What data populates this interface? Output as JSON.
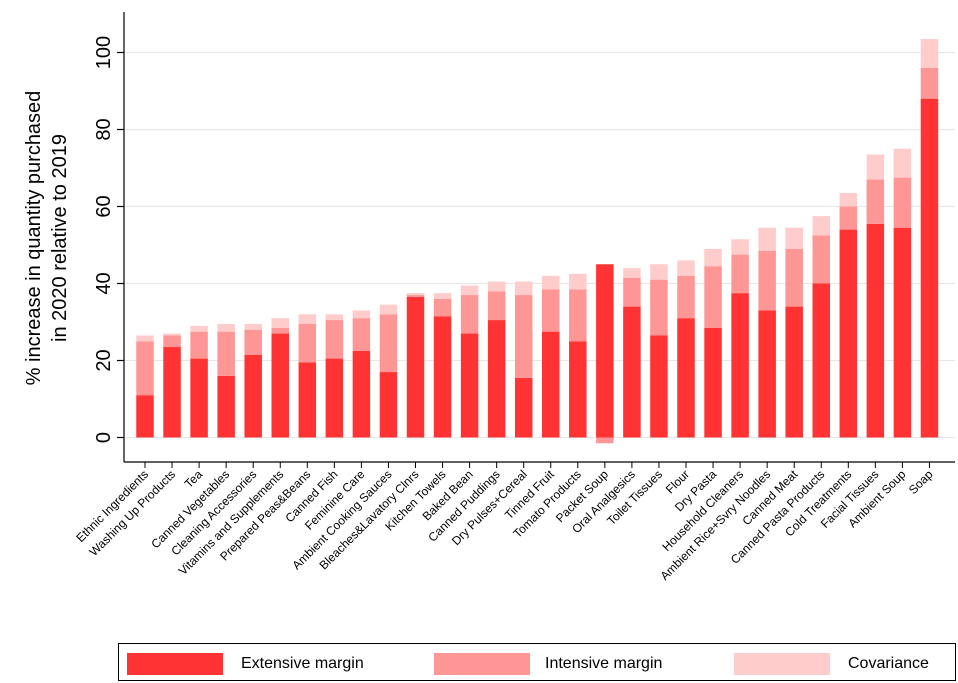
{
  "chart_data": {
    "type": "bar",
    "stacked": true,
    "ylabel": "% increase in quantity purchased in 2020 relative to 2019",
    "ylabel_lines": [
      "% increase in quantity purchased",
      "in 2020 relative to 2019"
    ],
    "xlabel": "",
    "ylim": [
      -6,
      111
    ],
    "yticks": [
      0,
      20,
      40,
      60,
      80,
      100
    ],
    "grid": true,
    "legend_position": "bottom",
    "categories": [
      "Ethnic Ingredients",
      "Washing Up Products",
      "Tea",
      "Canned Vegetables",
      "Cleaning Accessories",
      "Vitamins and Supplements",
      "Prepared Peas&Beans",
      "Canned Fish",
      "Feminine Care",
      "Ambient Cooking Sauces",
      "Bleaches&Lavatory Clnrs",
      "Kitchen Towels",
      "Baked Bean",
      "Canned Puddings",
      "Dry Pulses+Cereal",
      "Tinned Fruit",
      "Tomato Products",
      "Packet Soup",
      "Oral Analgesics",
      "Toilet Tissues",
      "Flour",
      "Dry Pasta",
      "Household Cleaners",
      "Ambient Rice+Svry Noodles",
      "Canned Meat",
      "Canned Pasta Products",
      "Cold Treatments",
      "Facial Tissues",
      "Ambient Soup",
      "Soap"
    ],
    "series": [
      {
        "name": "Extensive margin",
        "color": "#ff3333",
        "values": [
          11.0,
          23.5,
          20.5,
          16.0,
          21.5,
          27.0,
          19.5,
          20.5,
          22.5,
          17.0,
          36.5,
          31.5,
          27.0,
          30.5,
          15.5,
          27.5,
          25.0,
          45.0,
          34.0,
          26.5,
          31.0,
          28.5,
          37.5,
          33.0,
          34.0,
          40.0,
          54.0,
          55.5,
          54.5,
          88.0
        ]
      },
      {
        "name": "Intensive margin",
        "color": "#ff9696",
        "values": [
          14.0,
          3.0,
          7.0,
          11.5,
          6.5,
          1.5,
          10.0,
          10.0,
          8.5,
          15.0,
          0.5,
          4.5,
          10.0,
          7.5,
          21.5,
          11.0,
          13.5,
          -1.5,
          7.5,
          14.5,
          11.0,
          16.0,
          10.0,
          15.5,
          15.0,
          12.5,
          6.0,
          11.5,
          13.0,
          8.0
        ]
      },
      {
        "name": "Covariance",
        "color": "#ffcccc",
        "values": [
          1.5,
          0.5,
          1.5,
          2.0,
          1.5,
          2.5,
          2.5,
          1.5,
          2.0,
          2.5,
          0.5,
          1.5,
          2.5,
          2.5,
          3.5,
          3.5,
          4.0,
          0.0,
          2.5,
          4.0,
          4.0,
          4.5,
          4.0,
          6.0,
          5.5,
          5.0,
          3.5,
          6.5,
          7.5,
          7.5
        ]
      }
    ]
  },
  "legend": {
    "extensive_label": "Extensive margin",
    "intensive_label": "Intensive margin",
    "covariance_label": "Covariance"
  }
}
